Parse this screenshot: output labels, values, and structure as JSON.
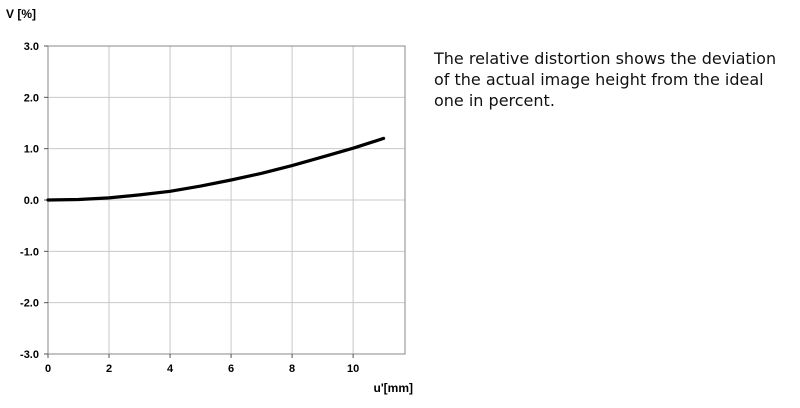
{
  "description": "The relative distortion shows the deviation of the actual image height from the ideal one in percent.",
  "chart_data": {
    "type": "line",
    "ylabel": "V [%]",
    "xlabel": "u'[mm]",
    "xlim": [
      0,
      11.7
    ],
    "ylim": [
      -3.0,
      3.0
    ],
    "x_ticks": [
      0,
      2,
      4,
      6,
      8,
      10
    ],
    "x_tick_labels": [
      "0",
      "2",
      "4",
      "6",
      "8",
      "10"
    ],
    "y_ticks": [
      3.0,
      2.0,
      1.0,
      0.0,
      -1.0,
      -2.0,
      -3.0
    ],
    "y_tick_labels": [
      "3.0",
      "2.0",
      "1.0",
      "0.0",
      "-1.0",
      "-2.0",
      "-3.0"
    ],
    "grid": true,
    "series": [
      {
        "color": "#000000",
        "x": [
          0,
          1,
          2,
          3,
          4,
          5,
          6,
          7,
          8,
          9,
          10,
          11
        ],
        "y": [
          0.0,
          0.01,
          0.04,
          0.1,
          0.17,
          0.27,
          0.39,
          0.52,
          0.67,
          0.84,
          1.01,
          1.2
        ]
      }
    ]
  }
}
